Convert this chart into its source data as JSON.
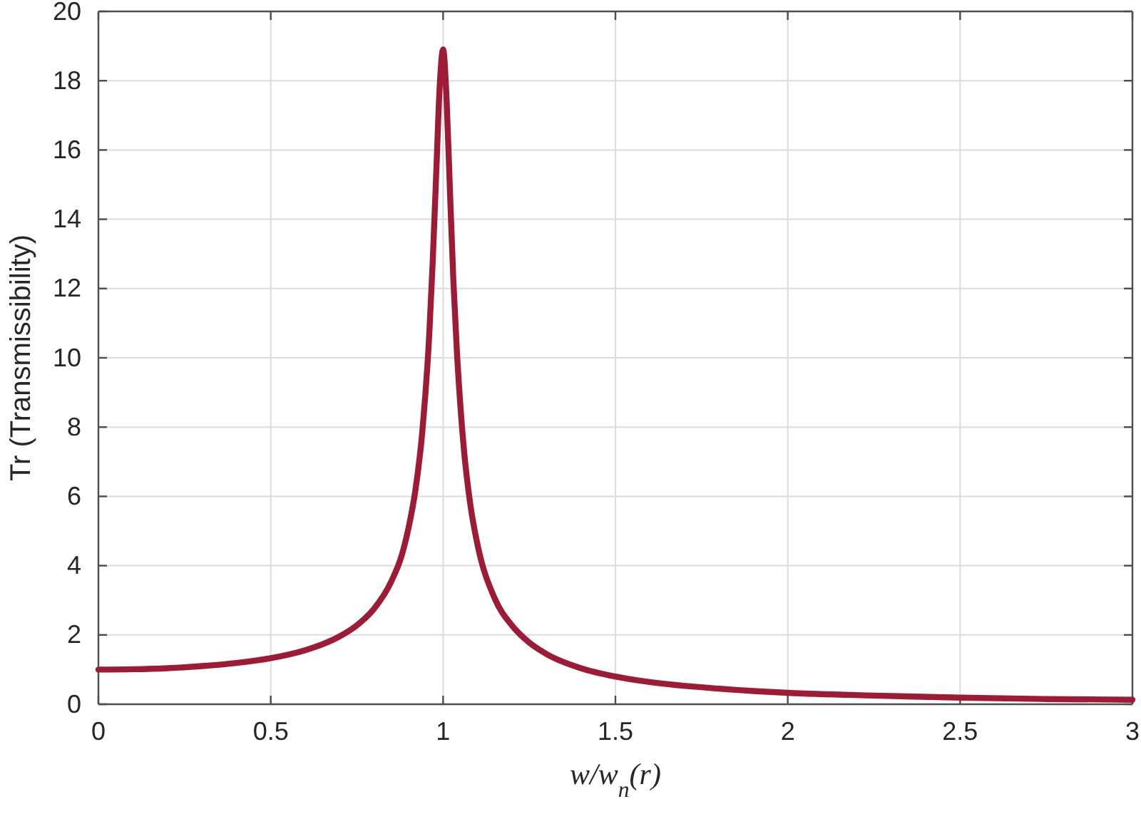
{
  "chart_data": {
    "type": "line",
    "xlabel": "w/w$_{n}$(r)",
    "ylabel": "Tr (Transmissibility)",
    "x": [
      0,
      0.1,
      0.2,
      0.3,
      0.4,
      0.5,
      0.6,
      0.65,
      0.7,
      0.75,
      0.8,
      0.85,
      0.88,
      0.9,
      0.92,
      0.94,
      0.96,
      0.97,
      0.98,
      0.99,
      1.0,
      1.01,
      1.02,
      1.03,
      1.04,
      1.06,
      1.08,
      1.1,
      1.15,
      1.2,
      1.25,
      1.3,
      1.4,
      1.5,
      1.6,
      1.8,
      2.0,
      2.25,
      2.5,
      2.75,
      3.0
    ],
    "series": [
      {
        "color": "#9e1b36",
        "values": [
          1.0,
          1.01,
          1.04,
          1.1,
          1.19,
          1.33,
          1.56,
          1.73,
          1.96,
          2.28,
          2.76,
          3.55,
          4.3,
          5.1,
          6.2,
          7.9,
          10.7,
          12.8,
          15.3,
          17.8,
          18.9,
          17.5,
          14.8,
          12.2,
          10.2,
          7.4,
          5.7,
          4.6,
          3.05,
          2.27,
          1.78,
          1.45,
          1.04,
          0.8,
          0.64,
          0.45,
          0.33,
          0.25,
          0.19,
          0.15,
          0.13
        ]
      }
    ],
    "xlim": [
      0,
      3
    ],
    "ylim": [
      0,
      20
    ],
    "xticks": [
      0,
      0.5,
      1,
      1.5,
      2,
      2.5,
      3
    ],
    "yticks": [
      0,
      2,
      4,
      6,
      8,
      10,
      12,
      14,
      16,
      18,
      20
    ],
    "grid": true,
    "line_style": "solid"
  }
}
